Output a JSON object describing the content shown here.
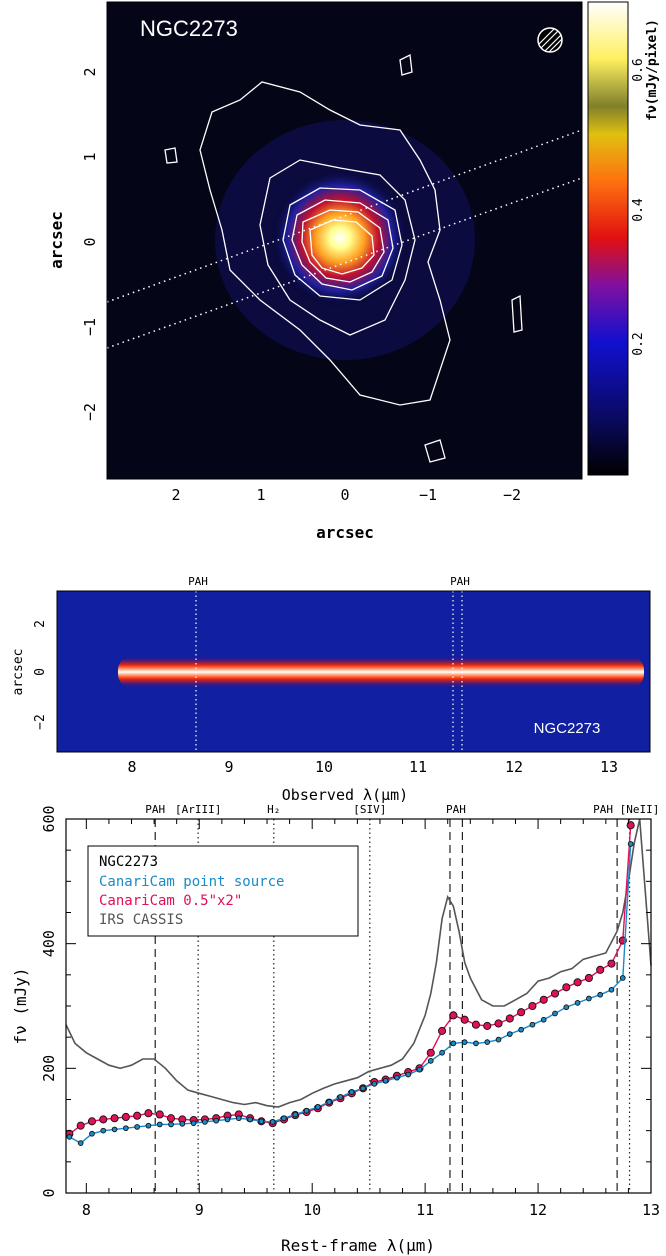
{
  "panel1": {
    "title": "NGC2273",
    "xlabel": "arcsec",
    "ylabel": "arcsec",
    "xticks": [
      "2",
      "1",
      "0",
      "−1",
      "−2"
    ],
    "yticks": [
      "2",
      "1",
      "0",
      "−1",
      "−2"
    ],
    "colorbar_label": "fν(mJy/pixel)",
    "colorbar_ticks": [
      "0.6",
      "0.4",
      "0.2"
    ]
  },
  "panel2": {
    "title": "NGC2273",
    "xlabel": "Observed λ(μm)",
    "ylabel": "arcsec",
    "xticks": [
      "8",
      "9",
      "10",
      "11",
      "12",
      "13"
    ],
    "yticks": [
      "2",
      "0",
      "−2"
    ],
    "markers": [
      "PAH",
      "PAH"
    ]
  },
  "chart_data": {
    "type": "line",
    "legend_title": "NGC2273",
    "xlabel": "Rest-frame λ(μm)",
    "ylabel": "fν  (mJy)",
    "xlim": [
      7.82,
      13.0
    ],
    "ylim": [
      0,
      600
    ],
    "xticks": [
      "8",
      "9",
      "10",
      "11",
      "12",
      "13"
    ],
    "yticks": [
      "0",
      "200",
      "400",
      "600"
    ],
    "grid": false,
    "legend_position": "top-left",
    "features": [
      {
        "label": "PAH",
        "x": 8.61,
        "style": "dashed"
      },
      {
        "label": "[ArIII]",
        "x": 8.99,
        "style": "dotted"
      },
      {
        "label": "H₂",
        "x": 9.66,
        "style": "dotted"
      },
      {
        "label": "[SIV]",
        "x": 10.51,
        "style": "dotted"
      },
      {
        "label": "PAH",
        "x": 11.22,
        "style": "dashed"
      },
      {
        "label": "PAH",
        "x": 11.33,
        "style": "dashed"
      },
      {
        "label": "PAH",
        "x": 12.7,
        "style": "dashed"
      },
      {
        "label": "[NeII]",
        "x": 12.81,
        "style": "dotted"
      }
    ],
    "series": [
      {
        "name": "IRS CASSIS",
        "color": "#555555",
        "x": [
          7.82,
          7.9,
          8.0,
          8.1,
          8.2,
          8.3,
          8.4,
          8.5,
          8.6,
          8.7,
          8.8,
          8.9,
          9.0,
          9.1,
          9.2,
          9.3,
          9.4,
          9.5,
          9.6,
          9.7,
          9.8,
          9.9,
          10.0,
          10.1,
          10.2,
          10.3,
          10.4,
          10.5,
          10.6,
          10.7,
          10.8,
          10.9,
          11.0,
          11.05,
          11.1,
          11.15,
          11.2,
          11.25,
          11.3,
          11.35,
          11.4,
          11.5,
          11.6,
          11.7,
          11.8,
          11.9,
          12.0,
          12.1,
          12.2,
          12.3,
          12.4,
          12.5,
          12.6,
          12.7,
          12.75,
          12.8,
          12.85,
          12.9,
          13.0
        ],
        "values": [
          270,
          240,
          225,
          215,
          205,
          200,
          205,
          215,
          215,
          200,
          180,
          165,
          160,
          155,
          150,
          145,
          142,
          145,
          140,
          138,
          145,
          150,
          160,
          168,
          175,
          180,
          185,
          195,
          200,
          205,
          215,
          240,
          285,
          320,
          370,
          440,
          475,
          460,
          420,
          370,
          345,
          310,
          300,
          300,
          310,
          320,
          340,
          345,
          355,
          360,
          375,
          380,
          385,
          420,
          450,
          500,
          560,
          620,
          365
        ],
        "show_markers": false
      },
      {
        "name": "CanariCam 0.5\"x2\"",
        "color": "#e0105a",
        "x": [
          7.85,
          7.95,
          8.05,
          8.15,
          8.25,
          8.35,
          8.45,
          8.55,
          8.65,
          8.75,
          8.85,
          8.95,
          9.05,
          9.15,
          9.25,
          9.35,
          9.45,
          9.55,
          9.65,
          9.75,
          9.85,
          9.95,
          10.05,
          10.15,
          10.25,
          10.35,
          10.45,
          10.55,
          10.65,
          10.75,
          10.85,
          10.95,
          11.05,
          11.15,
          11.25,
          11.35,
          11.45,
          11.55,
          11.65,
          11.75,
          11.85,
          11.95,
          12.05,
          12.15,
          12.25,
          12.35,
          12.45,
          12.55,
          12.65,
          12.75,
          12.82
        ],
        "values": [
          95,
          108,
          115,
          118,
          120,
          122,
          124,
          128,
          126,
          120,
          118,
          117,
          118,
          120,
          124,
          126,
          120,
          115,
          112,
          118,
          125,
          130,
          136,
          145,
          152,
          160,
          168,
          178,
          182,
          188,
          194,
          200,
          225,
          260,
          285,
          278,
          270,
          268,
          272,
          280,
          290,
          300,
          310,
          320,
          330,
          338,
          345,
          358,
          368,
          405,
          590
        ],
        "show_markers": true
      },
      {
        "name": "CanariCam point source",
        "color": "#1a8ac8",
        "x": [
          7.85,
          7.95,
          8.05,
          8.15,
          8.25,
          8.35,
          8.45,
          8.55,
          8.65,
          8.75,
          8.85,
          8.95,
          9.05,
          9.15,
          9.25,
          9.35,
          9.45,
          9.55,
          9.65,
          9.75,
          9.85,
          9.95,
          10.05,
          10.15,
          10.25,
          10.35,
          10.45,
          10.55,
          10.65,
          10.75,
          10.85,
          10.95,
          11.05,
          11.15,
          11.25,
          11.35,
          11.45,
          11.55,
          11.65,
          11.75,
          11.85,
          11.95,
          12.05,
          12.15,
          12.25,
          12.35,
          12.45,
          12.55,
          12.65,
          12.75,
          12.82
        ],
        "values": [
          90,
          80,
          95,
          100,
          102,
          104,
          106,
          108,
          110,
          110,
          111,
          112,
          114,
          116,
          118,
          120,
          118,
          115,
          114,
          120,
          126,
          132,
          138,
          146,
          154,
          162,
          168,
          175,
          180,
          185,
          190,
          198,
          212,
          225,
          240,
          242,
          240,
          242,
          246,
          255,
          262,
          270,
          278,
          288,
          298,
          305,
          312,
          318,
          326,
          345,
          560
        ],
        "show_markers": true
      }
    ]
  }
}
